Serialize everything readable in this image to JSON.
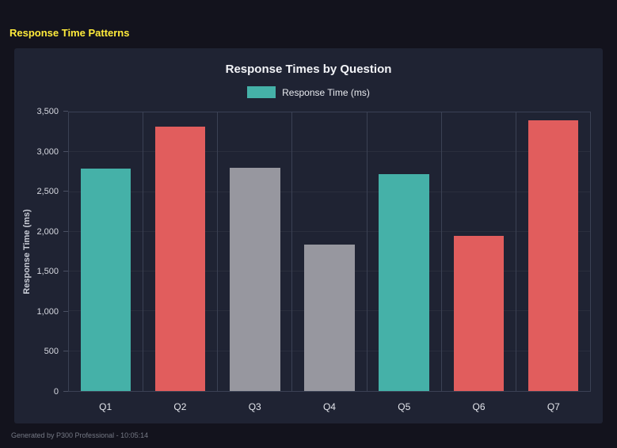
{
  "page": {
    "title": "Response Time Patterns",
    "footer": "Generated by P300 Professional - 10:05:14"
  },
  "chart_data": {
    "type": "bar",
    "title": "Response Times by Question",
    "categories": [
      "Q1",
      "Q2",
      "Q3",
      "Q4",
      "Q5",
      "Q6",
      "Q7"
    ],
    "values": [
      2790,
      3320,
      2800,
      1840,
      2720,
      1950,
      3400
    ],
    "bar_colors": [
      "#45b1a8",
      "#e15d5d",
      "#97979f",
      "#97979f",
      "#45b1a8",
      "#e15d5d",
      "#e15d5d"
    ],
    "xlabel": "",
    "ylabel": "Response Time (ms)",
    "ylim": [
      0,
      3500
    ],
    "ytick_labels": [
      "0",
      "500",
      "1,000",
      "1,500",
      "2,000",
      "2,500",
      "3,000",
      "3,500"
    ],
    "grid": true,
    "legend": {
      "position": "top",
      "items": [
        {
          "label": "Response Time (ms)",
          "color": "#45b1a8"
        }
      ]
    }
  }
}
